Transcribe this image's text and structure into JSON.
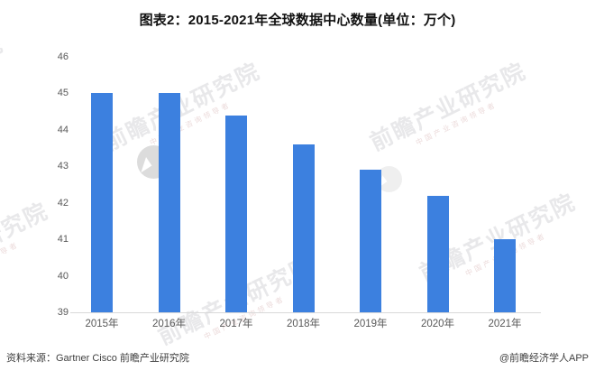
{
  "title": "图表2：2015-2021年全球数据中心数量(单位：万个)",
  "chart_data": {
    "type": "bar",
    "categories": [
      "2015年",
      "2016年",
      "2017年",
      "2018年",
      "2019年",
      "2020年",
      "2021年"
    ],
    "values": [
      45,
      45,
      44.4,
      43.6,
      42.9,
      42.2,
      41
    ],
    "title": "图表2：2015-2021年全球数据中心数量(单位：万个)",
    "xlabel": "",
    "ylabel": "",
    "ylim": [
      39,
      46
    ],
    "ytick_step": 1,
    "yticks": [
      39,
      40,
      41,
      42,
      43,
      44,
      45,
      46
    ],
    "grid": false,
    "legend": "none",
    "bar_color": "#3C80DF",
    "background": "#ffffff"
  },
  "footer": {
    "source_label": "资料来源：Gartner Cisco 前瞻产业研究院",
    "brand_label": "@前瞻经济学人APP"
  },
  "watermark": {
    "text": "前瞻产业研究院",
    "subtext": "中国产业咨询领导者"
  },
  "colors": {
    "bar": "#3C80DF",
    "axis_line": "#d9d9d9",
    "tick_text": "#595959",
    "title_text": "#111111",
    "footer_text": "#3f3f3f",
    "watermark_logo_dark": "#dcdcdc",
    "watermark_logo_light": "#efefef"
  }
}
